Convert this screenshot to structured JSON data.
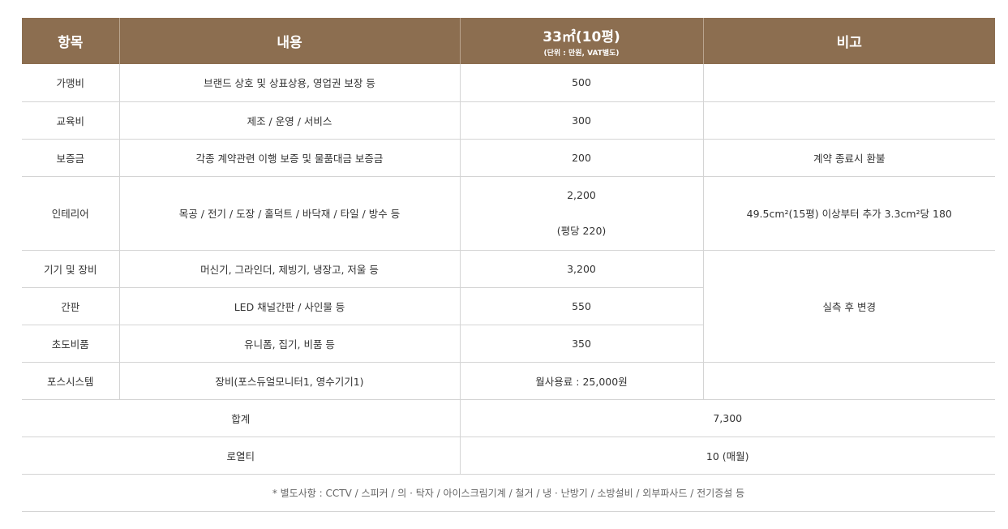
{
  "header": {
    "col1": "항목",
    "col2": "내용",
    "col3": "33㎡(10평)",
    "col3_sub": "(단위 : 만원, VAT별도)",
    "col4": "비고"
  },
  "rows": [
    {
      "item": "가맹비",
      "content": "브랜드 상호 및 상표상용, 영업권 보장 등",
      "cost": "500",
      "note": ""
    },
    {
      "item": "교육비",
      "content": "제조 / 운영 / 서비스",
      "cost": "300",
      "note": ""
    },
    {
      "item": "보증금",
      "content": "각종 계약관련 이행 보증 및 물품대금 보증금",
      "cost": "200",
      "note": "계약 종료시 환불"
    },
    {
      "item": "인테리어",
      "content": "목공 / 전기 / 도장 / 홀덕트 / 바닥재 / 타일 / 방수 등",
      "cost": "2,200",
      "cost_extra": "(평당 220)",
      "note": "49.5cm²(15평) 이상부터 추가 3.3cm²당 180"
    },
    {
      "item": "기기 및 장비",
      "content": "머신기, 그라인더, 제빙기, 냉장고, 저울 등",
      "cost": "3,200"
    },
    {
      "item": "간판",
      "content": "LED 채널간판 / 사인물 등",
      "cost": "550"
    },
    {
      "item": "초도비품",
      "content": "유니폼, 집기, 비품 등",
      "cost": "350"
    },
    {
      "item": "포스시스템",
      "content": "장비(포스듀얼모니터1, 영수기기1)",
      "cost": "월사용료 : 25,000원",
      "note": ""
    }
  ],
  "merged_note": "실측 후 변경",
  "total": {
    "label": "합계",
    "value": "7,300"
  },
  "royalty": {
    "label": "로열티",
    "value": "10 (매월)"
  },
  "footnote": "* 별도사항 : CCTV / 스피커 / 의 · 탁자 / 아이스크림기계 / 철거 / 냉 · 난방기 / 소방설비 / 외부파사드 / 전기증설 등",
  "colors": {
    "header_bg": "#8c6e50",
    "header_text": "#ffffff",
    "border": "#d4d4d4"
  }
}
